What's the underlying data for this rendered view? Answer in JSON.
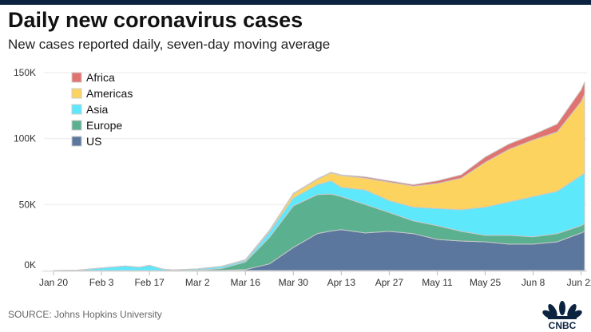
{
  "title": "Daily new coronavirus cases",
  "subtitle": "New cases reported daily, seven-day moving average",
  "source": "SOURCE: Johns Hopkins University",
  "logo_text": "CNBC",
  "chart_data": {
    "type": "area",
    "stacked": true,
    "title": "Daily new coronavirus cases",
    "xlabel": "",
    "ylabel": "",
    "ylim": [
      0,
      150
    ],
    "y_unit": "K",
    "y_ticks": [
      {
        "v": 0,
        "label": "0K"
      },
      {
        "v": 50,
        "label": "50K"
      },
      {
        "v": 100,
        "label": "100K"
      },
      {
        "v": 150,
        "label": "150K"
      }
    ],
    "x_ticks": [
      "Jan 20",
      "Feb 3",
      "Feb 17",
      "Mar 2",
      "Mar 16",
      "Mar 30",
      "Apr 13",
      "Apr 27",
      "May 11",
      "May 25",
      "Jun 8",
      "Jun 22"
    ],
    "grid": true,
    "legend_position": "top-left",
    "x": [
      "Jan 20",
      "Jan 27",
      "Feb 3",
      "Feb 10",
      "Feb 14",
      "Feb 17",
      "Feb 21",
      "Feb 24",
      "Mar 2",
      "Mar 9",
      "Mar 16",
      "Mar 23",
      "Mar 30",
      "Apr 6",
      "Apr 10",
      "Apr 13",
      "Apr 20",
      "Apr 27",
      "May 4",
      "May 11",
      "May 18",
      "May 25",
      "Jun 1",
      "Jun 8",
      "Jun 15",
      "Jun 22",
      "Jun 23"
    ],
    "series": [
      {
        "name": "US",
        "color": "#5b779e",
        "values": [
          0,
          0,
          0,
          0,
          0,
          0,
          0,
          0,
          0,
          0.2,
          0.8,
          5,
          17.5,
          28,
          30,
          31,
          28.5,
          29.7,
          28,
          23.6,
          22.4,
          21.8,
          20,
          20,
          21.8,
          28.5,
          29.7
        ]
      },
      {
        "name": "Europe",
        "color": "#5bb08f",
        "values": [
          0,
          0,
          0,
          0,
          0,
          0,
          0,
          0,
          0.3,
          1.3,
          5.7,
          20,
          31.5,
          29.5,
          28,
          25,
          21.5,
          14.3,
          9.6,
          10.4,
          7.3,
          4.9,
          6.7,
          5.5,
          6.2,
          5.5,
          6.1
        ]
      },
      {
        "name": "Asia",
        "color": "#5ee8fb",
        "values": [
          0,
          0.3,
          2,
          3.5,
          2.5,
          4,
          1,
          0.5,
          0.9,
          1.5,
          1,
          4,
          6,
          7.5,
          10,
          7,
          11,
          9,
          10.4,
          13,
          16.3,
          21.3,
          25.3,
          30.5,
          32,
          38,
          38.2
        ]
      },
      {
        "name": "Americas",
        "color": "#fdd35f",
        "values": [
          0,
          0,
          0,
          0,
          0,
          0,
          0,
          0,
          0.1,
          0.2,
          0.5,
          1,
          3,
          4,
          6,
          9,
          9,
          14,
          16,
          19,
          24,
          34,
          40,
          43,
          45,
          56,
          60
        ]
      },
      {
        "name": "Africa",
        "color": "#e07370",
        "values": [
          0,
          0,
          0,
          0,
          0,
          0,
          0,
          0,
          0,
          0,
          0.2,
          0.5,
          0.5,
          0.5,
          0.5,
          0.5,
          1,
          1,
          1,
          2,
          2.5,
          4,
          4,
          4,
          6,
          9,
          9
        ]
      }
    ],
    "legend": [
      "Africa",
      "Americas",
      "Asia",
      "Europe",
      "US"
    ]
  }
}
